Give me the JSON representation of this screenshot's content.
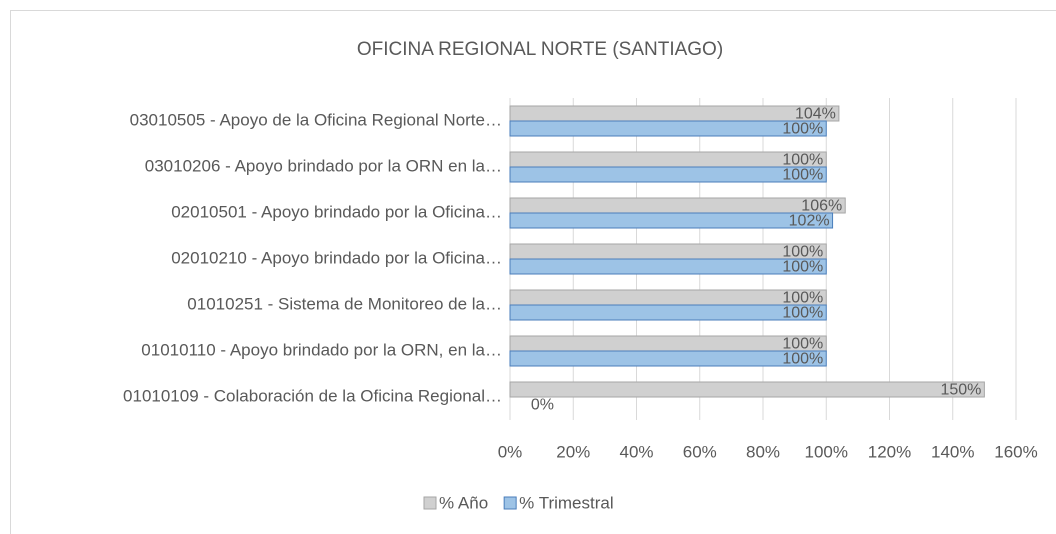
{
  "chart_data": {
    "type": "hbar",
    "title": "OFICINA REGIONAL NORTE (SANTIAGO)",
    "categories": [
      "03010505 - Apoyo de la Oficina Regional Norte…",
      "03010206 - Apoyo brindado por la ORN en la…",
      "02010501 - Apoyo brindado por la Oficina…",
      "02010210 - Apoyo brindado por la Oficina…",
      "01010251 - Sistema de Monitoreo de la…",
      "01010110 - Apoyo brindado por la ORN, en la…",
      "01010109 - Colaboración de la Oficina Regional…"
    ],
    "series": [
      {
        "name": "% Año",
        "color": "#d0d0d0",
        "stroke": "#a6a6a6",
        "values": [
          104,
          100,
          106,
          100,
          100,
          100,
          150
        ],
        "value_labels": [
          "104%",
          "100%",
          "106%",
          "100%",
          "100%",
          "100%",
          "150%"
        ]
      },
      {
        "name": "% Trimestral",
        "color": "#9dc3e6",
        "stroke": "#4a7ebb",
        "values": [
          100,
          100,
          102,
          100,
          100,
          100,
          0
        ],
        "value_labels": [
          "100%",
          "100%",
          "102%",
          "100%",
          "100%",
          "100%",
          "0%"
        ]
      }
    ],
    "xlim": [
      0,
      160
    ],
    "xticks": [
      {
        "value": 0,
        "label": "0%"
      },
      {
        "value": 20,
        "label": "20%"
      },
      {
        "value": 40,
        "label": "40%"
      },
      {
        "value": 60,
        "label": "60%"
      },
      {
        "value": 80,
        "label": "80%"
      },
      {
        "value": 100,
        "label": "100%"
      },
      {
        "value": 120,
        "label": "120%"
      },
      {
        "value": 140,
        "label": "140%"
      },
      {
        "value": 160,
        "label": "160%"
      }
    ],
    "grid": true,
    "legend": "bottom"
  }
}
